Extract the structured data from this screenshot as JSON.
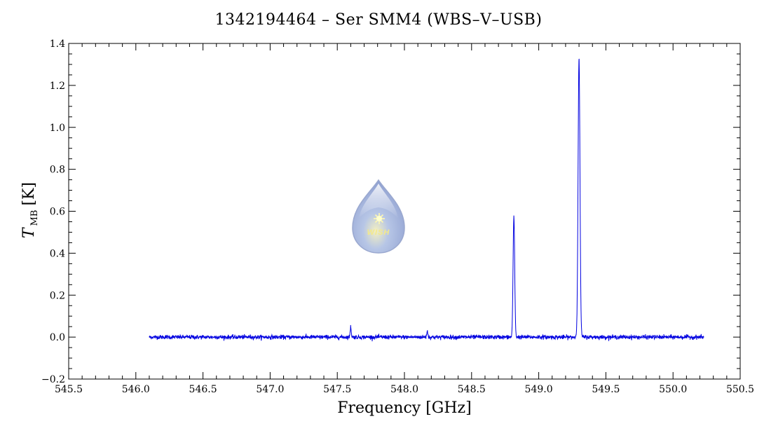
{
  "chart_data": {
    "type": "line",
    "title": "1342194464 – Ser SMM4 (WBS–V–USB)",
    "xlabel": "Frequency [GHz]",
    "ylabel_main": "T",
    "ylabel_sub": "MB",
    "ylabel_unit": "[K]",
    "xlim": [
      545.5,
      550.5
    ],
    "ylim": [
      -0.2,
      1.4
    ],
    "xticks": [
      "545.5",
      "546.0",
      "546.5",
      "547.0",
      "547.5",
      "548.0",
      "548.5",
      "549.0",
      "549.5",
      "550.0",
      "550.5"
    ],
    "yticks": [
      "−0.2",
      "0.0",
      "0.2",
      "0.4",
      "0.6",
      "0.8",
      "1.0",
      "1.2",
      "1.4"
    ],
    "grid": false,
    "series": [
      {
        "color": "#0000e0",
        "x_range": [
          546.1,
          550.23
        ],
        "baseline": 0.0,
        "noise_rms": 0.005,
        "lines": [
          {
            "x": 547.6,
            "peak": 0.05,
            "width": 0.004
          },
          {
            "x": 548.17,
            "peak": 0.03,
            "width": 0.004
          },
          {
            "x": 548.815,
            "peak": 0.575,
            "width": 0.006
          },
          {
            "x": 549.3,
            "peak": 1.325,
            "width": 0.007
          }
        ]
      }
    ]
  },
  "logo": {
    "text": "WISH"
  }
}
